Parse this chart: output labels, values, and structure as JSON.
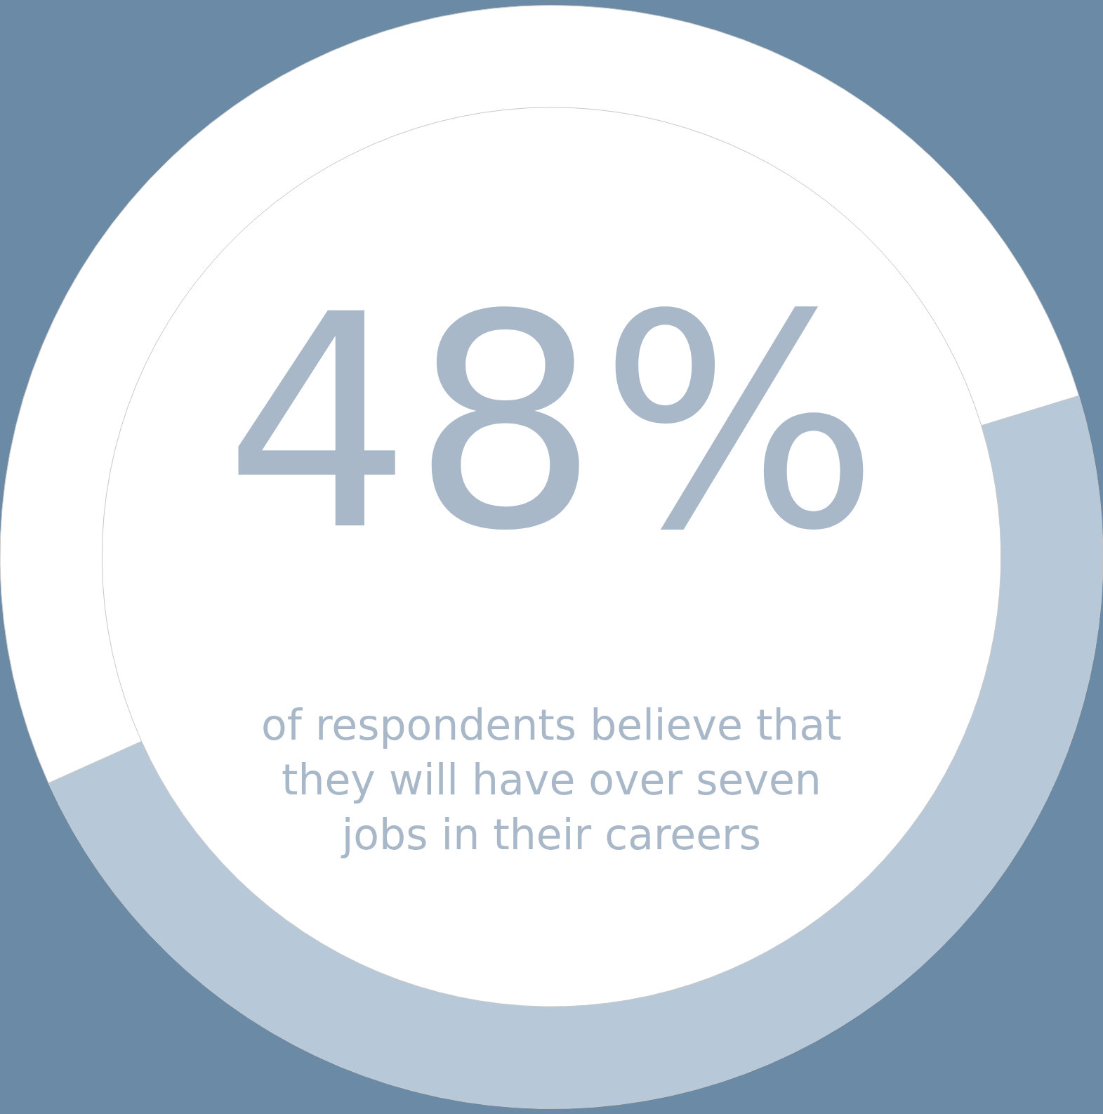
{
  "chart_data": {
    "type": "donut",
    "categories": [
      null,
      null
    ],
    "values": [
      48,
      52
    ],
    "colors": [
      "#b7c8d8",
      "#ffffff"
    ],
    "annotations": [
      "48%",
      "of respondents believe that\nthey will have over seven\njobs in their careers"
    ],
    "legend": false
  }
}
